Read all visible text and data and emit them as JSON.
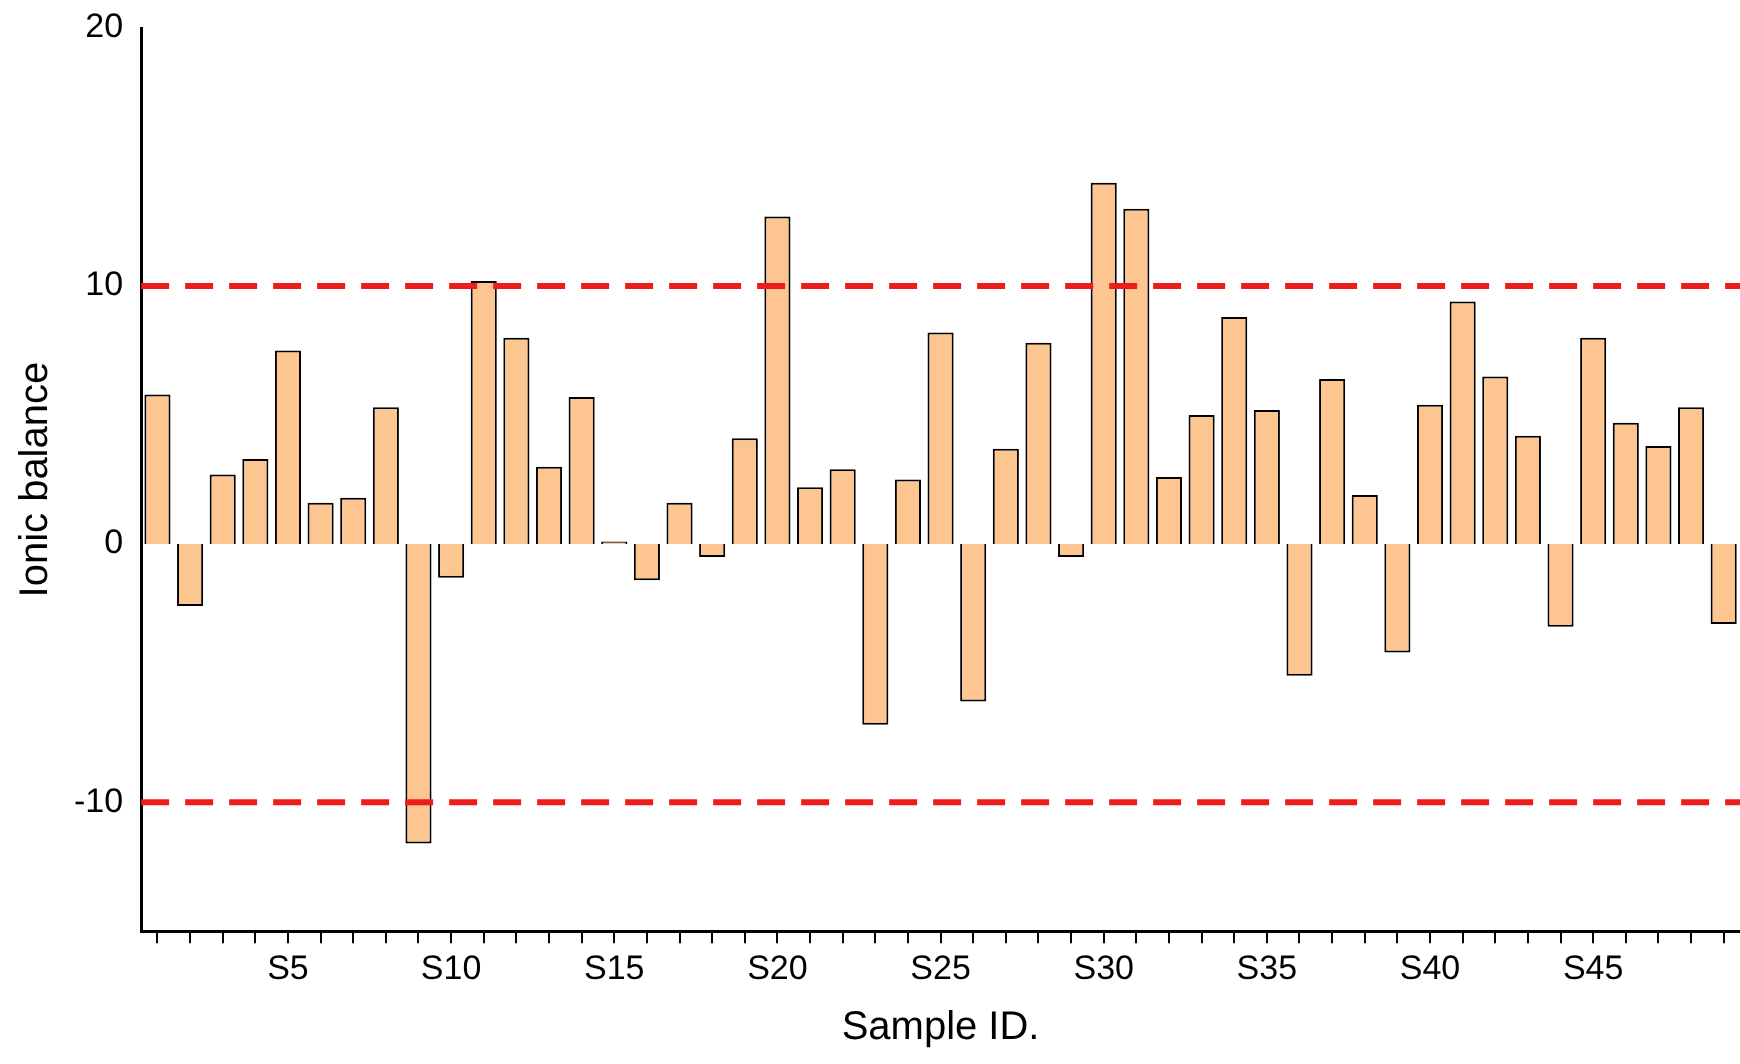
{
  "chart_data": {
    "type": "bar",
    "xlabel": "Sample ID.",
    "ylabel": "Ionic balance",
    "categories": [
      null,
      null,
      null,
      null,
      "S5",
      null,
      null,
      null,
      null,
      "S10",
      null,
      null,
      null,
      null,
      "S15",
      null,
      null,
      null,
      null,
      "S20",
      null,
      null,
      null,
      null,
      "S25",
      null,
      null,
      null,
      null,
      "S30",
      null,
      null,
      null,
      null,
      "S35",
      null,
      null,
      null,
      null,
      "S40",
      null,
      null,
      null,
      null,
      "S45",
      null,
      null,
      null,
      null
    ],
    "values": [
      5.8,
      -2.4,
      2.7,
      3.3,
      7.5,
      1.6,
      1.8,
      5.3,
      -11.6,
      -1.3,
      10.2,
      8.0,
      3.0,
      5.7,
      0.1,
      -1.4,
      1.6,
      -0.5,
      4.1,
      12.7,
      2.2,
      2.9,
      -7.0,
      2.5,
      8.2,
      -6.1,
      3.7,
      7.8,
      -0.5,
      14.0,
      13.0,
      2.6,
      5.0,
      8.8,
      5.2,
      -5.1,
      6.4,
      1.9,
      -4.2,
      5.4,
      9.4,
      6.5,
      4.2,
      -3.2,
      8.0,
      4.7,
      3.8,
      5.3,
      -3.1
    ],
    "color": "#fdc590",
    "ylim": [
      -15,
      20
    ],
    "yticks": [
      -10,
      0,
      10,
      20
    ],
    "grid": false,
    "legend": false,
    "ref_lines": [
      {
        "axis": "y",
        "value": 10,
        "color": "#ee1c1c",
        "line_style": "dashed"
      },
      {
        "axis": "y",
        "value": -10,
        "color": "#ee1c1c",
        "line_style": "dashed"
      }
    ]
  }
}
